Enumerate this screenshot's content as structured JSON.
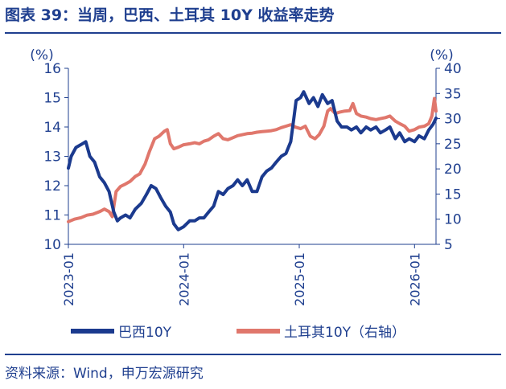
{
  "title": "图表 39：当周，巴西、土耳其 10Y 收益率走势",
  "source": "资料来源：Wind，申万宏源研究",
  "colors": {
    "brazil": "#1b3a8e",
    "turkey": "#e0776c",
    "axis": "#1f3f8f",
    "title": "#1f3f8f"
  },
  "chart_data": {
    "type": "line",
    "left_axis": {
      "unit_label": "(%)",
      "ylim": [
        10,
        16
      ],
      "ticks": [
        10,
        11,
        12,
        13,
        14,
        15,
        16
      ]
    },
    "right_axis": {
      "unit_label": "(%)",
      "ylim": [
        5,
        40
      ],
      "ticks": [
        5,
        10,
        15,
        20,
        25,
        30,
        35,
        40
      ]
    },
    "x_axis": {
      "range": [
        "2023-01-01",
        "2026-03-10"
      ],
      "tick_labels": [
        "2023-01",
        "2024-01",
        "2025-01",
        "2026-01"
      ]
    },
    "grid": false,
    "legend_position": "bottom",
    "series": [
      {
        "name": "巴西10Y",
        "axis": "left",
        "points": [
          [
            "2023-01-01",
            12.6
          ],
          [
            "2023-01-10",
            13.0
          ],
          [
            "2023-01-25",
            13.3
          ],
          [
            "2023-02-10",
            13.4
          ],
          [
            "2023-02-25",
            13.5
          ],
          [
            "2023-03-10",
            13.0
          ],
          [
            "2023-03-25",
            12.8
          ],
          [
            "2023-04-10",
            12.3
          ],
          [
            "2023-04-25",
            12.1
          ],
          [
            "2023-05-10",
            11.8
          ],
          [
            "2023-05-25",
            11.1
          ],
          [
            "2023-06-05",
            10.8
          ],
          [
            "2023-06-15",
            10.9
          ],
          [
            "2023-07-01",
            11.0
          ],
          [
            "2023-07-15",
            10.9
          ],
          [
            "2023-08-01",
            11.2
          ],
          [
            "2023-08-20",
            11.4
          ],
          [
            "2023-09-05",
            11.7
          ],
          [
            "2023-09-20",
            12.0
          ],
          [
            "2023-10-05",
            11.9
          ],
          [
            "2023-10-20",
            11.6
          ],
          [
            "2023-11-05",
            11.3
          ],
          [
            "2023-11-20",
            11.1
          ],
          [
            "2023-12-01",
            10.7
          ],
          [
            "2023-12-15",
            10.5
          ],
          [
            "2024-01-01",
            10.6
          ],
          [
            "2024-01-20",
            10.8
          ],
          [
            "2024-02-05",
            10.8
          ],
          [
            "2024-02-20",
            10.9
          ],
          [
            "2024-03-05",
            10.9
          ],
          [
            "2024-03-20",
            11.1
          ],
          [
            "2024-04-05",
            11.3
          ],
          [
            "2024-04-20",
            11.8
          ],
          [
            "2024-05-05",
            11.7
          ],
          [
            "2024-05-20",
            11.9
          ],
          [
            "2024-06-05",
            12.0
          ],
          [
            "2024-06-20",
            12.2
          ],
          [
            "2024-07-05",
            12.0
          ],
          [
            "2024-07-20",
            12.2
          ],
          [
            "2024-08-05",
            11.8
          ],
          [
            "2024-08-20",
            11.8
          ],
          [
            "2024-09-05",
            12.3
          ],
          [
            "2024-09-20",
            12.5
          ],
          [
            "2024-10-05",
            12.6
          ],
          [
            "2024-10-20",
            12.8
          ],
          [
            "2024-11-05",
            13.0
          ],
          [
            "2024-11-20",
            13.1
          ],
          [
            "2024-12-05",
            13.5
          ],
          [
            "2024-12-15",
            14.3
          ],
          [
            "2024-12-22",
            14.9
          ],
          [
            "2025-01-05",
            15.0
          ],
          [
            "2025-01-15",
            15.2
          ],
          [
            "2025-02-01",
            14.8
          ],
          [
            "2025-02-15",
            15.0
          ],
          [
            "2025-03-01",
            14.7
          ],
          [
            "2025-03-15",
            15.1
          ],
          [
            "2025-04-01",
            14.8
          ],
          [
            "2025-04-15",
            14.9
          ],
          [
            "2025-05-01",
            14.2
          ],
          [
            "2025-05-15",
            14.0
          ],
          [
            "2025-06-01",
            14.0
          ],
          [
            "2025-06-15",
            13.9
          ],
          [
            "2025-07-01",
            14.0
          ],
          [
            "2025-07-15",
            13.8
          ],
          [
            "2025-08-01",
            14.0
          ],
          [
            "2025-08-15",
            13.9
          ],
          [
            "2025-09-01",
            14.0
          ],
          [
            "2025-09-15",
            13.8
          ],
          [
            "2025-10-01",
            13.9
          ],
          [
            "2025-10-15",
            14.0
          ],
          [
            "2025-11-01",
            13.6
          ],
          [
            "2025-11-15",
            13.8
          ],
          [
            "2025-12-01",
            13.5
          ],
          [
            "2025-12-15",
            13.6
          ],
          [
            "2026-01-01",
            13.5
          ],
          [
            "2026-01-15",
            13.7
          ],
          [
            "2026-02-01",
            13.6
          ],
          [
            "2026-02-15",
            13.9
          ],
          [
            "2026-03-01",
            14.1
          ],
          [
            "2026-03-10",
            14.3
          ]
        ]
      },
      {
        "name": "土耳其10Y（右轴）",
        "axis": "right",
        "points": [
          [
            "2023-01-01",
            9.5
          ],
          [
            "2023-01-20",
            10.0
          ],
          [
            "2023-02-10",
            10.3
          ],
          [
            "2023-03-01",
            10.8
          ],
          [
            "2023-03-20",
            11.0
          ],
          [
            "2023-04-10",
            11.5
          ],
          [
            "2023-04-25",
            12.0
          ],
          [
            "2023-05-10",
            11.5
          ],
          [
            "2023-05-20",
            10.5
          ],
          [
            "2023-06-01",
            15.5
          ],
          [
            "2023-06-15",
            16.5
          ],
          [
            "2023-07-01",
            17.0
          ],
          [
            "2023-07-15",
            17.5
          ],
          [
            "2023-08-01",
            18.5
          ],
          [
            "2023-08-15",
            19.0
          ],
          [
            "2023-09-01",
            21.0
          ],
          [
            "2023-09-15",
            23.5
          ],
          [
            "2023-10-01",
            26.0
          ],
          [
            "2023-10-15",
            26.5
          ],
          [
            "2023-11-01",
            27.5
          ],
          [
            "2023-11-10",
            27.8
          ],
          [
            "2023-11-20",
            25.0
          ],
          [
            "2023-12-01",
            24.0
          ],
          [
            "2023-12-15",
            24.3
          ],
          [
            "2024-01-01",
            24.8
          ],
          [
            "2024-01-20",
            25.0
          ],
          [
            "2024-02-05",
            25.2
          ],
          [
            "2024-02-20",
            25.0
          ],
          [
            "2024-03-05",
            25.5
          ],
          [
            "2024-03-20",
            25.8
          ],
          [
            "2024-04-05",
            26.5
          ],
          [
            "2024-04-20",
            27.0
          ],
          [
            "2024-05-05",
            26.0
          ],
          [
            "2024-05-20",
            25.8
          ],
          [
            "2024-06-05",
            26.2
          ],
          [
            "2024-06-20",
            26.6
          ],
          [
            "2024-07-05",
            26.8
          ],
          [
            "2024-07-20",
            27.0
          ],
          [
            "2024-08-05",
            27.1
          ],
          [
            "2024-08-20",
            27.3
          ],
          [
            "2024-09-05",
            27.4
          ],
          [
            "2024-09-20",
            27.5
          ],
          [
            "2024-10-05",
            27.6
          ],
          [
            "2024-10-20",
            27.8
          ],
          [
            "2024-11-05",
            28.2
          ],
          [
            "2024-11-20",
            28.5
          ],
          [
            "2024-12-05",
            28.8
          ],
          [
            "2024-12-20",
            28.3
          ],
          [
            "2025-01-05",
            28.0
          ],
          [
            "2025-01-20",
            28.5
          ],
          [
            "2025-02-05",
            26.5
          ],
          [
            "2025-02-20",
            26.0
          ],
          [
            "2025-03-05",
            26.8
          ],
          [
            "2025-03-20",
            28.5
          ],
          [
            "2025-04-01",
            31.5
          ],
          [
            "2025-04-10",
            32.0
          ],
          [
            "2025-04-25",
            31.0
          ],
          [
            "2025-05-10",
            31.3
          ],
          [
            "2025-05-25",
            31.5
          ],
          [
            "2025-06-10",
            31.6
          ],
          [
            "2025-06-20",
            33.0
          ],
          [
            "2025-07-01",
            31.0
          ],
          [
            "2025-07-15",
            30.5
          ],
          [
            "2025-08-01",
            30.3
          ],
          [
            "2025-08-15",
            30.0
          ],
          [
            "2025-09-01",
            29.8
          ],
          [
            "2025-09-15",
            30.0
          ],
          [
            "2025-10-01",
            30.2
          ],
          [
            "2025-10-15",
            30.5
          ],
          [
            "2025-11-01",
            29.5
          ],
          [
            "2025-11-15",
            29.0
          ],
          [
            "2025-12-01",
            28.5
          ],
          [
            "2025-12-15",
            27.5
          ],
          [
            "2026-01-01",
            27.8
          ],
          [
            "2026-01-15",
            28.3
          ],
          [
            "2026-02-01",
            28.5
          ],
          [
            "2026-02-15",
            29.0
          ],
          [
            "2026-02-25",
            30.5
          ],
          [
            "2026-03-05",
            34.0
          ],
          [
            "2026-03-10",
            31.5
          ]
        ]
      }
    ]
  }
}
